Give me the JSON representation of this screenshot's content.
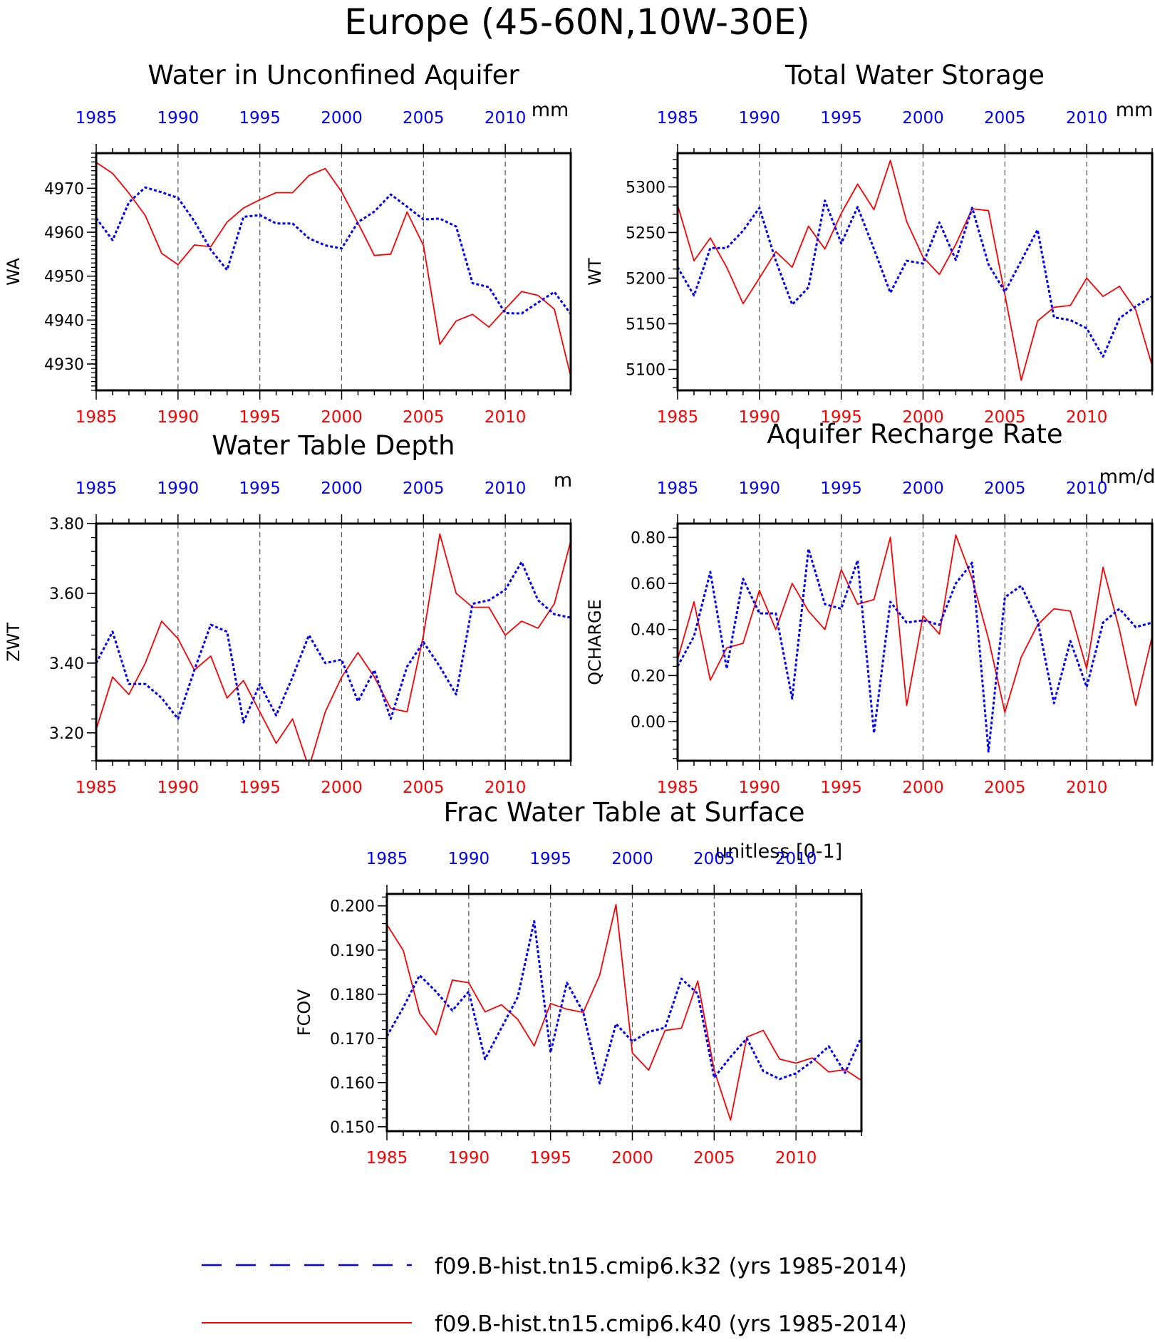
{
  "page_title": "Europe (45-60N,10W-30E)",
  "colors": {
    "k32": "#0000ff",
    "k40": "#ff0000",
    "axis": "#000000",
    "vgrid": "#555555"
  },
  "legend": [
    {
      "label": "f09.B-hist.tn15.cmip6.k32 (yrs 1985-2014)",
      "style": "dashed",
      "color": "#0000ff"
    },
    {
      "label": "f09.B-hist.tn15.cmip6.k40 (yrs 1985-2014)",
      "style": "solid",
      "color": "#ff0000"
    }
  ],
  "chart_data": [
    {
      "id": "wa",
      "type": "line",
      "title": "Water in Unconfined Aquifer",
      "ylabel": "WA",
      "units": "mm",
      "xlim": [
        1985,
        2014
      ],
      "ylim": [
        4924,
        4978
      ],
      "yticks": [
        4930,
        4940,
        4950,
        4960,
        4970
      ],
      "ytick_labels": [
        "4930",
        "4940",
        "4950",
        "4960",
        "4970"
      ],
      "yminor": 1,
      "grid": "vertical dashed at 5-year ticks",
      "x": [
        1985,
        1986,
        1987,
        1988,
        1989,
        1990,
        1991,
        1992,
        1993,
        1994,
        1995,
        1996,
        1997,
        1998,
        1999,
        2000,
        2001,
        2002,
        2003,
        2004,
        2005,
        2006,
        2007,
        2008,
        2009,
        2010,
        2011,
        2012,
        2013,
        2014
      ],
      "series": [
        {
          "name": "k32",
          "values": [
            4963.2,
            4958.2,
            4966.8,
            4970.2,
            4969.1,
            4967.8,
            4962.5,
            4956.0,
            4951.4,
            4963.5,
            4963.9,
            4962.0,
            4962.0,
            4958.6,
            4957.0,
            4956.3,
            4962.3,
            4964.7,
            4968.6,
            4965.8,
            4962.9,
            4963.1,
            4961.3,
            4948.4,
            4947.5,
            4941.6,
            4941.5,
            4944.0,
            4946.4,
            4941.4
          ]
        },
        {
          "name": "k40",
          "values": [
            4975.9,
            4973.4,
            4968.9,
            4963.8,
            4955.2,
            4952.6,
            4957.1,
            4956.7,
            4962.3,
            4965.5,
            4967.4,
            4969.0,
            4969.0,
            4972.9,
            4974.5,
            4969.2,
            4962.1,
            4954.7,
            4955.0,
            4964.6,
            4957.0,
            4934.5,
            4939.8,
            4941.3,
            4938.4,
            4942.5,
            4946.5,
            4945.6,
            4942.5,
            4927.2
          ]
        }
      ]
    },
    {
      "id": "wt",
      "type": "line",
      "title": "Total Water Storage",
      "ylabel": "WT",
      "units": "mm",
      "xlim": [
        1985,
        2014
      ],
      "ylim": [
        5077,
        5337
      ],
      "yticks": [
        5100,
        5150,
        5200,
        5250,
        5300
      ],
      "ytick_labels": [
        "5100",
        "5150",
        "5200",
        "5250",
        "5300"
      ],
      "yminor": 10,
      "grid": "vertical dashed at 5-year ticks",
      "x": [
        1985,
        1986,
        1987,
        1988,
        1989,
        1990,
        1991,
        1992,
        1993,
        1994,
        1995,
        1996,
        1997,
        1998,
        1999,
        2000,
        2001,
        2002,
        2003,
        2004,
        2005,
        2006,
        2007,
        2008,
        2009,
        2010,
        2011,
        2012,
        2013,
        2014
      ],
      "series": [
        {
          "name": "k32",
          "values": [
            5212,
            5181,
            5233,
            5233,
            5252,
            5277,
            5219,
            5171,
            5190,
            5285,
            5238,
            5278,
            5232,
            5184,
            5219,
            5216,
            5261,
            5220,
            5277,
            5215,
            5185,
            5219,
            5253,
            5157,
            5154,
            5145,
            5114,
            5156,
            5169,
            5180
          ]
        },
        {
          "name": "k40",
          "values": [
            5280,
            5219,
            5244,
            5212,
            5172,
            5200,
            5229,
            5212,
            5257,
            5232,
            5271,
            5303,
            5275,
            5329,
            5262,
            5223,
            5204,
            5237,
            5276,
            5274,
            5182,
            5088,
            5153,
            5168,
            5170,
            5200,
            5180,
            5191,
            5165,
            5104
          ]
        }
      ]
    },
    {
      "id": "zwt",
      "type": "line",
      "title": "Water Table Depth",
      "ylabel": "ZWT",
      "units": "m",
      "xlim": [
        1985,
        2014
      ],
      "ylim": [
        3.12,
        3.8
      ],
      "yticks": [
        3.2,
        3.4,
        3.6,
        3.8
      ],
      "ytick_labels": [
        "3.20",
        "3.40",
        "3.60",
        "3.80"
      ],
      "yminor": 0.04,
      "grid": "vertical dashed at 5-year ticks",
      "x": [
        1985,
        1986,
        1987,
        1988,
        1989,
        1990,
        1991,
        1992,
        1993,
        1994,
        1995,
        1996,
        1997,
        1998,
        1999,
        2000,
        2001,
        2002,
        2003,
        2004,
        2005,
        2006,
        2007,
        2008,
        2009,
        2010,
        2011,
        2012,
        2013,
        2014
      ],
      "series": [
        {
          "name": "k32",
          "values": [
            3.4,
            3.49,
            3.34,
            3.34,
            3.3,
            3.24,
            3.38,
            3.51,
            3.49,
            3.23,
            3.34,
            3.25,
            3.36,
            3.48,
            3.4,
            3.41,
            3.29,
            3.38,
            3.24,
            3.39,
            3.46,
            3.39,
            3.31,
            3.57,
            3.58,
            3.61,
            3.69,
            3.58,
            3.54,
            3.53
          ]
        },
        {
          "name": "k40",
          "values": [
            3.21,
            3.36,
            3.31,
            3.4,
            3.52,
            3.47,
            3.38,
            3.42,
            3.3,
            3.35,
            3.26,
            3.17,
            3.24,
            3.1,
            3.26,
            3.36,
            3.43,
            3.36,
            3.27,
            3.26,
            3.48,
            3.77,
            3.6,
            3.56,
            3.56,
            3.48,
            3.52,
            3.5,
            3.57,
            3.75
          ]
        }
      ]
    },
    {
      "id": "qcharge",
      "type": "line",
      "title": "Aquifer Recharge Rate",
      "ylabel": "QCHARGE",
      "units": "mm/d",
      "xlim": [
        1985,
        2014
      ],
      "ylim": [
        -0.17,
        0.86
      ],
      "yticks": [
        0.0,
        0.2,
        0.4,
        0.6,
        0.8
      ],
      "ytick_labels": [
        "0.00",
        "0.20",
        "0.40",
        "0.60",
        "0.80"
      ],
      "yminor": 0.04,
      "grid": "vertical dashed at 5-year ticks",
      "x": [
        1985,
        1986,
        1987,
        1988,
        1989,
        1990,
        1991,
        1992,
        1993,
        1994,
        1995,
        1996,
        1997,
        1998,
        1999,
        2000,
        2001,
        2002,
        2003,
        2004,
        2005,
        2006,
        2007,
        2008,
        2009,
        2010,
        2011,
        2012,
        2013,
        2014
      ],
      "series": [
        {
          "name": "k32",
          "values": [
            0.24,
            0.37,
            0.65,
            0.23,
            0.62,
            0.47,
            0.47,
            0.1,
            0.75,
            0.51,
            0.49,
            0.7,
            -0.05,
            0.52,
            0.43,
            0.44,
            0.42,
            0.6,
            0.69,
            -0.13,
            0.54,
            0.59,
            0.44,
            0.08,
            0.35,
            0.15,
            0.43,
            0.49,
            0.41,
            0.43
          ]
        },
        {
          "name": "k40",
          "values": [
            0.27,
            0.52,
            0.18,
            0.32,
            0.34,
            0.57,
            0.4,
            0.6,
            0.48,
            0.4,
            0.66,
            0.51,
            0.53,
            0.8,
            0.07,
            0.46,
            0.38,
            0.81,
            0.62,
            0.36,
            0.04,
            0.28,
            0.42,
            0.49,
            0.48,
            0.23,
            0.67,
            0.4,
            0.07,
            0.37
          ]
        }
      ]
    },
    {
      "id": "fcov",
      "type": "line",
      "title": "Frac Water Table at Surface",
      "ylabel": "FCOV",
      "units": "unitless [0-1]",
      "xlim": [
        1985,
        2014
      ],
      "ylim": [
        0.149,
        0.2027
      ],
      "yticks": [
        0.15,
        0.16,
        0.17,
        0.18,
        0.19,
        0.2
      ],
      "ytick_labels": [
        "0.150",
        "0.160",
        "0.170",
        "0.180",
        "0.190",
        "0.200"
      ],
      "yminor": 0.002,
      "grid": "vertical dashed at 5-year ticks",
      "x": [
        1985,
        1986,
        1987,
        1988,
        1989,
        1990,
        1991,
        1992,
        1993,
        1994,
        1995,
        1996,
        1997,
        1998,
        1999,
        2000,
        2001,
        2002,
        2003,
        2004,
        2005,
        2006,
        2007,
        2008,
        2009,
        2010,
        2011,
        2012,
        2013,
        2014
      ],
      "series": [
        {
          "name": "k32",
          "values": [
            0.1705,
            0.177,
            0.1843,
            0.1806,
            0.1763,
            0.1806,
            0.1653,
            0.1724,
            0.1794,
            0.1965,
            0.1668,
            0.1826,
            0.1759,
            0.1598,
            0.1733,
            0.1693,
            0.1715,
            0.1724,
            0.1835,
            0.1801,
            0.1611,
            0.1658,
            0.17,
            0.1626,
            0.1608,
            0.1621,
            0.1648,
            0.1682,
            0.1622,
            0.1703
          ]
        },
        {
          "name": "k40",
          "values": [
            0.1958,
            0.1899,
            0.1757,
            0.1708,
            0.1832,
            0.1826,
            0.176,
            0.1776,
            0.1743,
            0.1683,
            0.1779,
            0.1766,
            0.1759,
            0.1843,
            0.2003,
            0.1667,
            0.1628,
            0.1718,
            0.1723,
            0.183,
            0.1628,
            0.1515,
            0.1703,
            0.1718,
            0.1653,
            0.1644,
            0.1656,
            0.1624,
            0.1629,
            0.1605
          ]
        }
      ]
    }
  ]
}
